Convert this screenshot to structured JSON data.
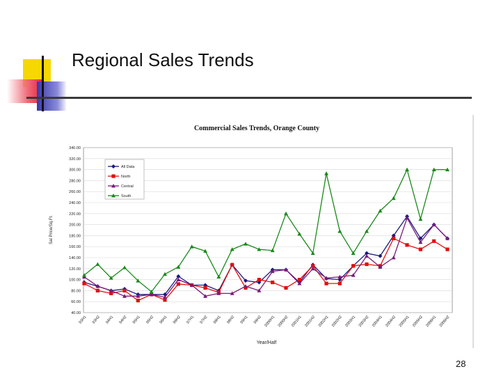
{
  "slide": {
    "title": "Regional Sales Trends",
    "page_number": "28"
  },
  "chart_data": {
    "type": "line",
    "title": "Commercial Sales Trends, Orange County",
    "xlabel": "Year/Half",
    "ylabel": "Sal Price/Sq.Ft.",
    "ylim": [
      40,
      340
    ],
    "grid": true,
    "legend_position": "top-left",
    "ytick_labels": [
      "40.00",
      "60.00",
      "80.00",
      "100.00",
      "120.00",
      "140.00",
      "160.00",
      "180.00",
      "200.00",
      "220.00",
      "240.00",
      "260.00",
      "280.00",
      "300.00",
      "320.00",
      "340.00"
    ],
    "categories": [
      "93H1",
      "93H2",
      "94H1",
      "94H2",
      "95H1",
      "95H2",
      "96H1",
      "96H2",
      "97H1",
      "97H2",
      "98H1",
      "98H2",
      "99H1",
      "99H2",
      "2000H1",
      "2000H2",
      "2001H1",
      "2001H2",
      "2002H1",
      "2002H2",
      "2003H1",
      "2003H2",
      "2004H1",
      "2004H2",
      "2005H1",
      "2005H2",
      "2006H1",
      "2006H2"
    ],
    "series": [
      {
        "name": "All Data",
        "color": "#1a1a80",
        "marker": "diamond",
        "values": [
          95,
          88,
          80,
          83,
          73,
          73,
          73,
          106,
          90,
          90,
          80,
          127,
          98,
          95,
          118,
          118,
          95,
          127,
          102,
          100,
          125,
          148,
          143,
          180,
          215,
          175,
          200,
          175
        ]
      },
      {
        "name": "North",
        "color": "#e01010",
        "marker": "square",
        "values": [
          93,
          80,
          75,
          80,
          62,
          73,
          63,
          92,
          90,
          85,
          77,
          127,
          85,
          100,
          95,
          85,
          100,
          125,
          93,
          93,
          125,
          128,
          125,
          175,
          163,
          155,
          170,
          155
        ]
      },
      {
        "name": "Central",
        "color": "#7a1a7a",
        "marker": "triangle",
        "values": [
          105,
          88,
          80,
          70,
          70,
          73,
          68,
          100,
          90,
          70,
          75,
          75,
          88,
          80,
          115,
          118,
          93,
          120,
          103,
          105,
          108,
          143,
          123,
          140,
          212,
          168,
          200,
          175
        ]
      },
      {
        "name": "South",
        "color": "#1a8a1a",
        "marker": "triangle",
        "values": [
          108,
          128,
          103,
          122,
          98,
          78,
          110,
          123,
          160,
          152,
          105,
          155,
          165,
          155,
          153,
          220,
          183,
          148,
          293,
          188,
          148,
          188,
          225,
          248,
          300,
          210,
          300,
          300
        ]
      }
    ]
  }
}
